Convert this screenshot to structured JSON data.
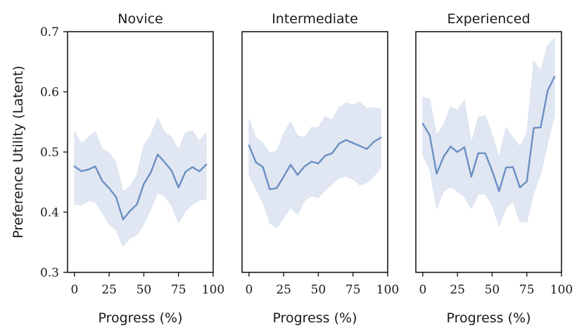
{
  "chart_data": [
    {
      "type": "line",
      "title": "Novice",
      "xlabel": "Progress (%)",
      "ylabel": "Preference Utility (Latent)",
      "xlim": [
        -5,
        100
      ],
      "ylim": [
        0.3,
        0.7
      ],
      "xticks": [
        0,
        25,
        50,
        75,
        100
      ],
      "yticks": [
        0.3,
        0.4,
        0.5,
        0.6,
        0.7
      ],
      "series": [
        {
          "color": "#6b8fc3",
          "band_color": "#dbe3f0",
          "x": [
            0,
            5,
            10,
            15,
            20,
            25,
            30,
            35,
            40,
            45,
            50,
            55,
            60,
            65,
            70,
            75,
            80,
            85,
            90,
            95
          ],
          "y": [
            0.476,
            0.468,
            0.471,
            0.476,
            0.452,
            0.44,
            0.425,
            0.388,
            0.402,
            0.413,
            0.447,
            0.466,
            0.496,
            0.483,
            0.469,
            0.441,
            0.467,
            0.475,
            0.468,
            0.479
          ],
          "lower": [
            0.413,
            0.412,
            0.419,
            0.417,
            0.399,
            0.38,
            0.37,
            0.343,
            0.357,
            0.362,
            0.38,
            0.405,
            0.432,
            0.427,
            0.411,
            0.382,
            0.402,
            0.413,
            0.42,
            0.422
          ],
          "upper": [
            0.534,
            0.514,
            0.524,
            0.534,
            0.505,
            0.499,
            0.482,
            0.434,
            0.443,
            0.462,
            0.511,
            0.528,
            0.557,
            0.532,
            0.525,
            0.503,
            0.532,
            0.535,
            0.518,
            0.532
          ]
        }
      ]
    },
    {
      "type": "line",
      "title": "Intermediate",
      "xlabel": "Progress (%)",
      "ylabel": "",
      "xlim": [
        -5,
        100
      ],
      "ylim": [
        0.3,
        0.7
      ],
      "xticks": [
        0,
        25,
        50,
        75,
        100
      ],
      "yticks": [],
      "series": [
        {
          "color": "#6b8fc3",
          "band_color": "#dbe3f0",
          "x": [
            0,
            5,
            10,
            15,
            20,
            25,
            30,
            35,
            40,
            45,
            50,
            55,
            60,
            65,
            70,
            75,
            80,
            85,
            90,
            95
          ],
          "y": [
            0.511,
            0.483,
            0.475,
            0.438,
            0.44,
            0.459,
            0.479,
            0.462,
            0.476,
            0.484,
            0.481,
            0.494,
            0.498,
            0.514,
            0.52,
            0.515,
            0.51,
            0.505,
            0.517,
            0.524
          ],
          "lower": [
            0.461,
            0.439,
            0.416,
            0.382,
            0.374,
            0.391,
            0.407,
            0.396,
            0.419,
            0.427,
            0.424,
            0.436,
            0.447,
            0.457,
            0.46,
            0.455,
            0.445,
            0.449,
            0.46,
            0.473
          ],
          "upper": [
            0.555,
            0.524,
            0.515,
            0.498,
            0.502,
            0.53,
            0.55,
            0.527,
            0.524,
            0.541,
            0.541,
            0.559,
            0.553,
            0.574,
            0.582,
            0.578,
            0.583,
            0.572,
            0.574,
            0.571
          ]
        }
      ]
    },
    {
      "type": "line",
      "title": "Experienced",
      "xlabel": "Progress (%)",
      "ylabel": "",
      "xlim": [
        -5,
        100
      ],
      "ylim": [
        0.3,
        0.7
      ],
      "xticks": [
        0,
        25,
        50,
        75,
        100
      ],
      "yticks": [],
      "series": [
        {
          "color": "#6b8fc3",
          "band_color": "#dbe3f0",
          "x": [
            0,
            5,
            10,
            15,
            20,
            25,
            30,
            35,
            40,
            45,
            50,
            55,
            60,
            65,
            70,
            75,
            80,
            85,
            90,
            95
          ],
          "y": [
            0.547,
            0.528,
            0.464,
            0.492,
            0.509,
            0.5,
            0.508,
            0.459,
            0.498,
            0.498,
            0.469,
            0.435,
            0.474,
            0.475,
            0.441,
            0.451,
            0.54,
            0.541,
            0.602,
            0.625
          ],
          "lower": [
            0.495,
            0.471,
            0.406,
            0.435,
            0.442,
            0.435,
            0.425,
            0.406,
            0.43,
            0.43,
            0.412,
            0.377,
            0.406,
            0.418,
            0.384,
            0.384,
            0.432,
            0.463,
            0.514,
            0.561
          ],
          "upper": [
            0.591,
            0.588,
            0.528,
            0.545,
            0.575,
            0.569,
            0.586,
            0.514,
            0.558,
            0.561,
            0.529,
            0.491,
            0.541,
            0.524,
            0.509,
            0.53,
            0.651,
            0.635,
            0.677,
            0.689
          ]
        }
      ]
    }
  ]
}
